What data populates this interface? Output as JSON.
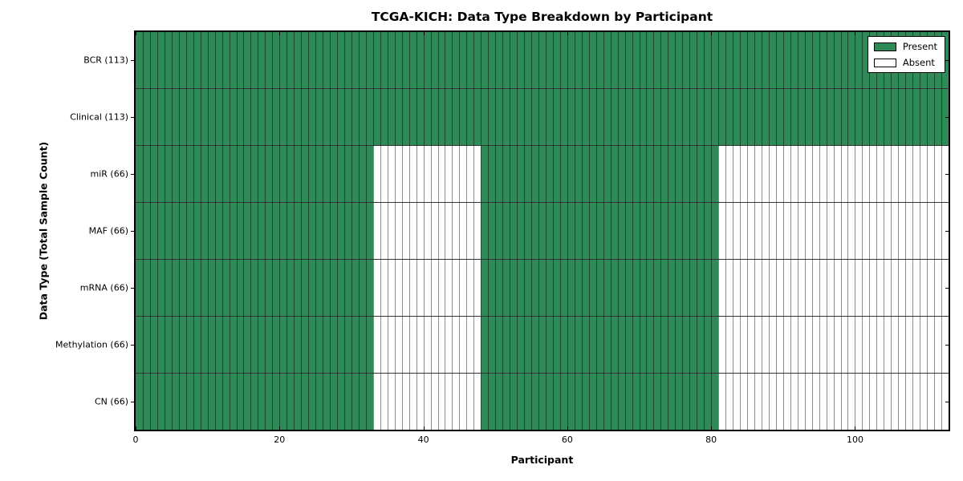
{
  "chart_data": {
    "type": "heatmap",
    "title": "TCGA-KICH: Data Type Breakdown by Participant",
    "xlabel": "Participant",
    "ylabel": "Data Type (Total Sample Count)",
    "xlim": [
      0,
      113
    ],
    "x_ticks": [
      0,
      20,
      40,
      60,
      80,
      100
    ],
    "n_participants": 113,
    "grid": "cell-edges",
    "colors": {
      "present": "#2e8b57",
      "absent": "#ffffff",
      "cell_edge": "#000000"
    },
    "legend": {
      "position": "upper right",
      "entries": [
        {
          "label": "Present",
          "key": "present"
        },
        {
          "label": "Absent",
          "key": "absent"
        }
      ]
    },
    "rows": [
      {
        "label": "BCR (113)",
        "total_samples": 113,
        "segments": [
          {
            "state": "present",
            "start": 0,
            "end": 113
          }
        ]
      },
      {
        "label": "Clinical (113)",
        "total_samples": 113,
        "segments": [
          {
            "state": "present",
            "start": 0,
            "end": 113
          }
        ]
      },
      {
        "label": "miR (66)",
        "total_samples": 66,
        "segments": [
          {
            "state": "present",
            "start": 0,
            "end": 33
          },
          {
            "state": "absent",
            "start": 33,
            "end": 48
          },
          {
            "state": "present",
            "start": 48,
            "end": 81
          },
          {
            "state": "absent",
            "start": 81,
            "end": 113
          }
        ]
      },
      {
        "label": "MAF (66)",
        "total_samples": 66,
        "segments": [
          {
            "state": "present",
            "start": 0,
            "end": 33
          },
          {
            "state": "absent",
            "start": 33,
            "end": 48
          },
          {
            "state": "present",
            "start": 48,
            "end": 81
          },
          {
            "state": "absent",
            "start": 81,
            "end": 113
          }
        ]
      },
      {
        "label": "mRNA (66)",
        "total_samples": 66,
        "segments": [
          {
            "state": "present",
            "start": 0,
            "end": 33
          },
          {
            "state": "absent",
            "start": 33,
            "end": 48
          },
          {
            "state": "present",
            "start": 48,
            "end": 81
          },
          {
            "state": "absent",
            "start": 81,
            "end": 113
          }
        ]
      },
      {
        "label": "Methylation (66)",
        "total_samples": 66,
        "segments": [
          {
            "state": "present",
            "start": 0,
            "end": 33
          },
          {
            "state": "absent",
            "start": 33,
            "end": 48
          },
          {
            "state": "present",
            "start": 48,
            "end": 81
          },
          {
            "state": "absent",
            "start": 81,
            "end": 113
          }
        ]
      },
      {
        "label": "CN (66)",
        "total_samples": 66,
        "segments": [
          {
            "state": "present",
            "start": 0,
            "end": 33
          },
          {
            "state": "absent",
            "start": 33,
            "end": 48
          },
          {
            "state": "present",
            "start": 48,
            "end": 81
          },
          {
            "state": "absent",
            "start": 81,
            "end": 113
          }
        ]
      }
    ]
  }
}
